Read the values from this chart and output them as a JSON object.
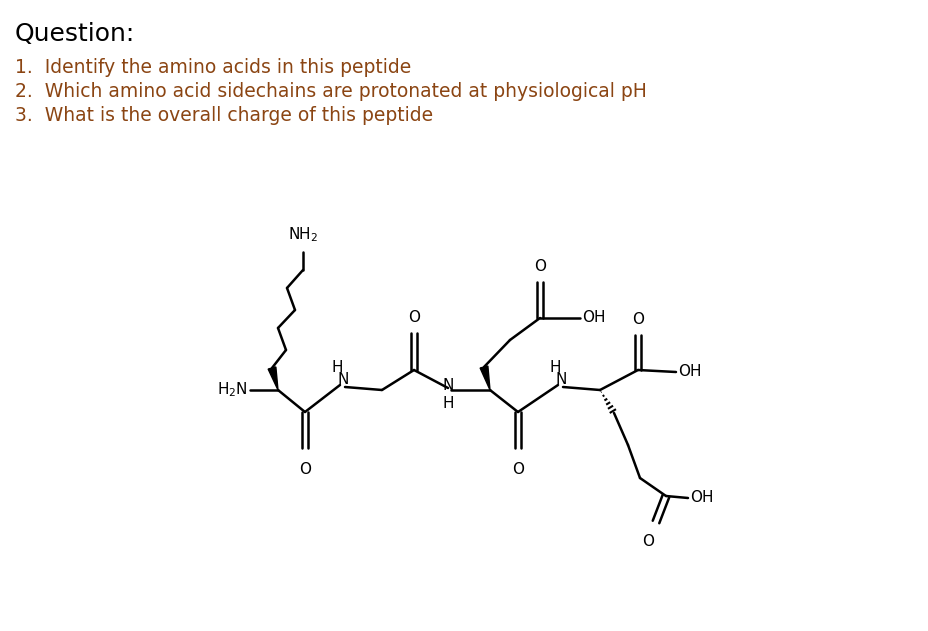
{
  "title": "Question:",
  "questions": [
    "1.  Identify the amino acids in this peptide",
    "2.  Which amino acid sidechains are protonated at physiological pH",
    "3.  What is the overall charge of this peptide"
  ],
  "title_color": "#000000",
  "question_color": "#8B4513",
  "background_color": "#ffffff",
  "title_fontsize": 18,
  "question_fontsize": 13.5,
  "molecule_color": "#000000",
  "lw": 1.8
}
